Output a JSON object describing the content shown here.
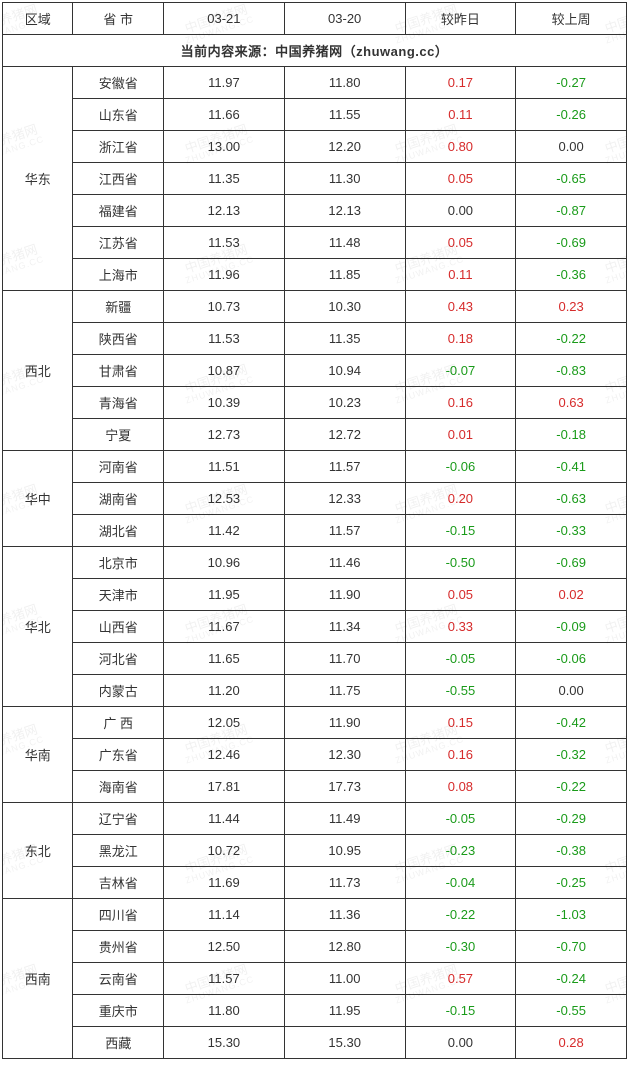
{
  "header": {
    "region": "区域",
    "province": "省 市",
    "date1": "03-21",
    "date2": "03-20",
    "vs_yesterday": "较昨日",
    "vs_lastweek": "较上周"
  },
  "source_line": "当前内容来源：中国养猪网（zhuwang.cc）",
  "watermark": {
    "line1": "中国养猪网",
    "line2": "ZHUWANG.CC"
  },
  "color_pos": "#d62b2b",
  "color_neg": "#1a9b1a",
  "color_zero": "#333333",
  "regions": [
    {
      "name": "华东",
      "rows": [
        {
          "province": "安徽省",
          "d1": "11.97",
          "d2": "11.80",
          "dd": "0.17",
          "dw": "-0.27"
        },
        {
          "province": "山东省",
          "d1": "11.66",
          "d2": "11.55",
          "dd": "0.11",
          "dw": "-0.26"
        },
        {
          "province": "浙江省",
          "d1": "13.00",
          "d2": "12.20",
          "dd": "0.80",
          "dw": "0.00"
        },
        {
          "province": "江西省",
          "d1": "11.35",
          "d2": "11.30",
          "dd": "0.05",
          "dw": "-0.65"
        },
        {
          "province": "福建省",
          "d1": "12.13",
          "d2": "12.13",
          "dd": "0.00",
          "dw": "-0.87"
        },
        {
          "province": "江苏省",
          "d1": "11.53",
          "d2": "11.48",
          "dd": "0.05",
          "dw": "-0.69"
        },
        {
          "province": "上海市",
          "d1": "11.96",
          "d2": "11.85",
          "dd": "0.11",
          "dw": "-0.36"
        }
      ]
    },
    {
      "name": "西北",
      "rows": [
        {
          "province": "新疆",
          "d1": "10.73",
          "d2": "10.30",
          "dd": "0.43",
          "dw": "0.23"
        },
        {
          "province": "陕西省",
          "d1": "11.53",
          "d2": "11.35",
          "dd": "0.18",
          "dw": "-0.22"
        },
        {
          "province": "甘肃省",
          "d1": "10.87",
          "d2": "10.94",
          "dd": "-0.07",
          "dw": "-0.83"
        },
        {
          "province": "青海省",
          "d1": "10.39",
          "d2": "10.23",
          "dd": "0.16",
          "dw": "0.63"
        },
        {
          "province": "宁夏",
          "d1": "12.73",
          "d2": "12.72",
          "dd": "0.01",
          "dw": "-0.18"
        }
      ]
    },
    {
      "name": "华中",
      "rows": [
        {
          "province": "河南省",
          "d1": "11.51",
          "d2": "11.57",
          "dd": "-0.06",
          "dw": "-0.41"
        },
        {
          "province": "湖南省",
          "d1": "12.53",
          "d2": "12.33",
          "dd": "0.20",
          "dw": "-0.63"
        },
        {
          "province": "湖北省",
          "d1": "11.42",
          "d2": "11.57",
          "dd": "-0.15",
          "dw": "-0.33"
        }
      ]
    },
    {
      "name": "华北",
      "rows": [
        {
          "province": "北京市",
          "d1": "10.96",
          "d2": "11.46",
          "dd": "-0.50",
          "dw": "-0.69"
        },
        {
          "province": "天津市",
          "d1": "11.95",
          "d2": "11.90",
          "dd": "0.05",
          "dw": "0.02"
        },
        {
          "province": "山西省",
          "d1": "11.67",
          "d2": "11.34",
          "dd": "0.33",
          "dw": "-0.09"
        },
        {
          "province": "河北省",
          "d1": "11.65",
          "d2": "11.70",
          "dd": "-0.05",
          "dw": "-0.06"
        },
        {
          "province": "内蒙古",
          "d1": "11.20",
          "d2": "11.75",
          "dd": "-0.55",
          "dw": "0.00"
        }
      ]
    },
    {
      "name": "华南",
      "rows": [
        {
          "province": "广 西",
          "d1": "12.05",
          "d2": "11.90",
          "dd": "0.15",
          "dw": "-0.42"
        },
        {
          "province": "广东省",
          "d1": "12.46",
          "d2": "12.30",
          "dd": "0.16",
          "dw": "-0.32"
        },
        {
          "province": "海南省",
          "d1": "17.81",
          "d2": "17.73",
          "dd": "0.08",
          "dw": "-0.22"
        }
      ]
    },
    {
      "name": "东北",
      "rows": [
        {
          "province": "辽宁省",
          "d1": "11.44",
          "d2": "11.49",
          "dd": "-0.05",
          "dw": "-0.29"
        },
        {
          "province": "黑龙江",
          "d1": "10.72",
          "d2": "10.95",
          "dd": "-0.23",
          "dw": "-0.38"
        },
        {
          "province": "吉林省",
          "d1": "11.69",
          "d2": "11.73",
          "dd": "-0.04",
          "dw": "-0.25"
        }
      ]
    },
    {
      "name": "西南",
      "rows": [
        {
          "province": "四川省",
          "d1": "11.14",
          "d2": "11.36",
          "dd": "-0.22",
          "dw": "-1.03"
        },
        {
          "province": "贵州省",
          "d1": "12.50",
          "d2": "12.80",
          "dd": "-0.30",
          "dw": "-0.70"
        },
        {
          "province": "云南省",
          "d1": "11.57",
          "d2": "11.00",
          "dd": "0.57",
          "dw": "-0.24"
        },
        {
          "province": "重庆市",
          "d1": "11.80",
          "d2": "11.95",
          "dd": "-0.15",
          "dw": "-0.55"
        },
        {
          "province": "西藏",
          "d1": "15.30",
          "d2": "15.30",
          "dd": "0.00",
          "dw": "0.28"
        }
      ]
    }
  ]
}
